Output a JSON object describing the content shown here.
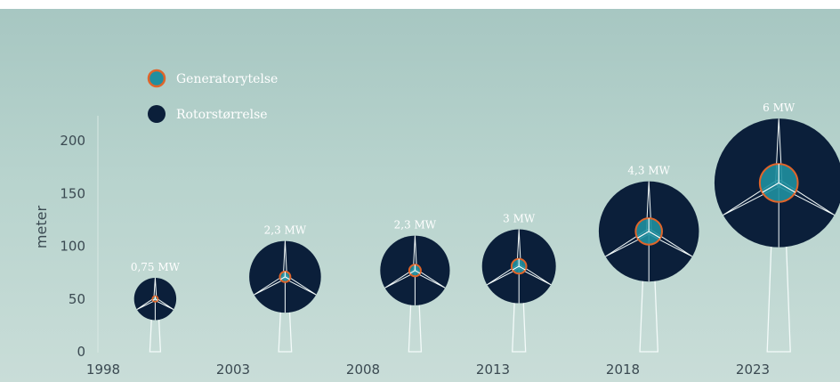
{
  "chart_data": {
    "type": "scatter",
    "title": "",
    "xlabel": "",
    "ylabel": "meter",
    "ylim": [
      0,
      220
    ],
    "yticks": [
      0,
      50,
      100,
      150,
      200
    ],
    "xticks": [
      "1998",
      "2003",
      "2008",
      "2013",
      "2018",
      "2023"
    ],
    "legend": {
      "position": "top-left",
      "items": [
        {
          "label": "Generatorytelse",
          "color": "#1f8fa0",
          "edge": "#e0652a"
        },
        {
          "label": "Rotorstørrelse",
          "color": "#0b1f3a"
        }
      ]
    },
    "series": [
      {
        "name": "Rotorstørrelse",
        "color": "#0b1f3a"
      },
      {
        "name": "Generatorytelse",
        "color": "#1f8fa0"
      }
    ],
    "turbines": [
      {
        "year": 2000,
        "power_label": "0,75 MW",
        "hub_height": 50,
        "rotor_diameter": 40,
        "generator_diameter": 3
      },
      {
        "year": 2005,
        "power_label": "2,3 MW",
        "hub_height": 71,
        "rotor_diameter": 68,
        "generator_diameter": 10
      },
      {
        "year": 2010,
        "power_label": "2,3 MW",
        "hub_height": 77,
        "rotor_diameter": 66,
        "generator_diameter": 11
      },
      {
        "year": 2014,
        "power_label": "3 MW",
        "hub_height": 81,
        "rotor_diameter": 70,
        "generator_diameter": 14
      },
      {
        "year": 2019,
        "power_label": "4,3 MW",
        "hub_height": 114,
        "rotor_diameter": 95,
        "generator_diameter": 25
      },
      {
        "year": 2024,
        "power_label": "6 MW",
        "hub_height": 160,
        "rotor_diameter": 122,
        "generator_diameter": 36
      }
    ]
  },
  "colors": {
    "rotor": "#0b1f3a",
    "generator": "#1f8fa0",
    "generator_edge": "#e0652a",
    "tower": "#f4fbfa"
  }
}
